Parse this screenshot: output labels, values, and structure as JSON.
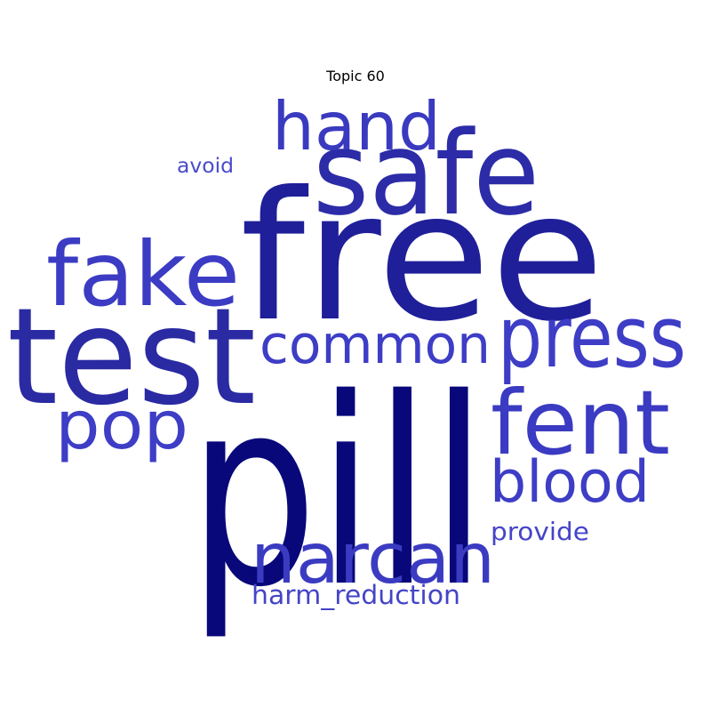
{
  "title": "Topic 60",
  "words": [
    {
      "text": "pill",
      "color": "#08087a"
    },
    {
      "text": "free",
      "color": "#1f1f99"
    },
    {
      "text": "test",
      "color": "#2a2aa3"
    },
    {
      "text": "safe",
      "color": "#2c2ca8"
    },
    {
      "text": "fake",
      "color": "#3b3bc4"
    },
    {
      "text": "press",
      "color": "#3d3dc6"
    },
    {
      "text": "fent",
      "color": "#3a3ac2"
    },
    {
      "text": "hand",
      "color": "#3a3ac0"
    },
    {
      "text": "common",
      "color": "#3d3dc6"
    },
    {
      "text": "pop",
      "color": "#3d3dc6"
    },
    {
      "text": "narcan",
      "color": "#3b3bc2"
    },
    {
      "text": "blood",
      "color": "#3d3dc6"
    },
    {
      "text": "provide",
      "color": "#4444c8"
    },
    {
      "text": "harm_reduction",
      "color": "#4444c8"
    },
    {
      "text": "avoid",
      "color": "#4a4acc"
    }
  ]
}
